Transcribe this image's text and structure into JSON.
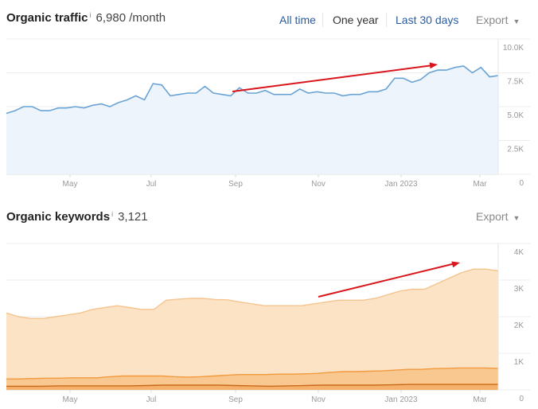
{
  "traffic": {
    "title": "Organic traffic",
    "info": "i",
    "value": "6,980 /month",
    "tabs": [
      {
        "label": "All time",
        "active": false
      },
      {
        "label": "One year",
        "active": true
      },
      {
        "label": "Last 30 days",
        "active": false
      }
    ],
    "export": "Export"
  },
  "keywords": {
    "title": "Organic keywords",
    "info": "i",
    "value": "3,121",
    "export": "Export"
  },
  "chart_data": [
    {
      "type": "line",
      "x_range": [
        "2022-03-14",
        "2023-03-14"
      ],
      "x_ticks": [
        "May",
        "Jul",
        "Sep",
        "Nov",
        "Jan 2023",
        "Mar"
      ],
      "y_ticks": [
        "10.0K",
        "7.5K",
        "5.0K",
        "2.5K",
        "0"
      ],
      "ylim": [
        0,
        10000
      ],
      "grid": true,
      "color": "#6aa3d5",
      "fill": "#eef4fc",
      "series": [
        {
          "values": [
            4500,
            4700,
            5000,
            5000,
            4700,
            4700,
            4900,
            4900,
            5000,
            4900,
            5100,
            5200,
            5000,
            5300,
            5500,
            5800,
            5500,
            6700,
            6600,
            5800,
            5900,
            6000,
            6000,
            6500,
            6000,
            5900,
            5800,
            6400,
            6000,
            6000,
            6200,
            5900,
            5900,
            5900,
            6300,
            6000,
            6100,
            6000,
            6000,
            5800,
            5900,
            5900,
            6100,
            6100,
            6300,
            7100,
            7100,
            6800,
            7000,
            7500,
            7700,
            7700,
            7900,
            8000,
            7500,
            7900,
            7200,
            7300
          ]
        }
      ],
      "annotation": "red-arrow-upward-trend"
    },
    {
      "type": "area",
      "x_range": [
        "2022-03-14",
        "2023-03-14"
      ],
      "x_ticks": [
        "May",
        "Jul",
        "Sep",
        "Nov",
        "Jan 2023",
        "Mar"
      ],
      "y_ticks": [
        "4K",
        "3K",
        "2K",
        "1K",
        "0"
      ],
      "ylim": [
        0,
        4000
      ],
      "grid": true,
      "series": [
        {
          "color": "#f5c48e",
          "fill": "#fde3c6",
          "values": [
            2100,
            2000,
            1950,
            1950,
            2000,
            2050,
            2100,
            2200,
            2250,
            2300,
            2250,
            2200,
            2200,
            2450,
            2480,
            2500,
            2500,
            2470,
            2460,
            2400,
            2350,
            2300,
            2300,
            2300,
            2300,
            2350,
            2400,
            2450,
            2450,
            2450,
            2500,
            2600,
            2700,
            2750,
            2750,
            2900,
            3050,
            3200,
            3300,
            3300,
            3250
          ]
        },
        {
          "color": "#f19a3e",
          "fill": "#f9c790",
          "values": [
            300,
            300,
            310,
            320,
            320,
            330,
            330,
            330,
            360,
            380,
            380,
            380,
            380,
            360,
            350,
            360,
            380,
            400,
            420,
            420,
            420,
            430,
            430,
            440,
            450,
            480,
            500,
            500,
            510,
            520,
            540,
            560,
            560,
            580,
            590,
            600,
            600,
            600,
            590
          ]
        },
        {
          "color": "#c96a1a",
          "fill": "#f5b06c",
          "values": [
            100,
            100,
            100,
            110,
            110,
            110,
            110,
            110,
            120,
            130,
            130,
            130,
            130,
            120,
            110,
            100,
            110,
            120,
            130,
            130,
            130,
            130,
            140,
            150,
            150,
            150,
            150,
            150,
            150
          ]
        }
      ],
      "annotation": "red-arrow-upward-trend"
    }
  ]
}
